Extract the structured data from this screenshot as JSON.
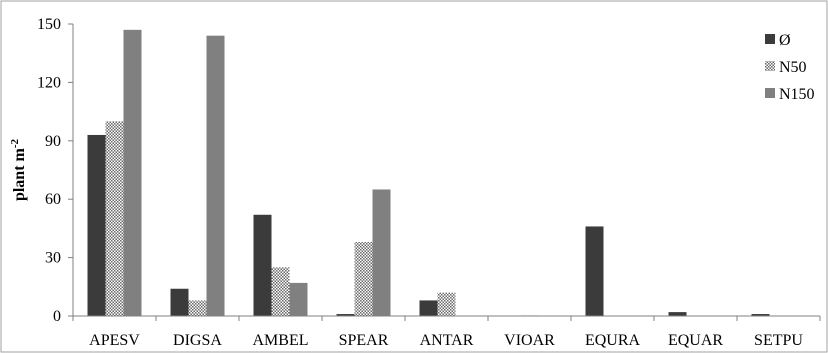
{
  "chart_data": {
    "type": "bar",
    "title": "",
    "xlabel": "",
    "ylabel": {
      "base": "plant m",
      "sup": "-2"
    },
    "ylim": [
      0,
      150
    ],
    "yticks": [
      0,
      30,
      60,
      90,
      120,
      150
    ],
    "grid": false,
    "legend_position": "top-right",
    "categories": [
      "APESV",
      "DIGSA",
      "AMBEL",
      "SPEAR",
      "ANTAR",
      "VIOAR",
      "EQURA",
      "EQUAR",
      "SETPU"
    ],
    "series": [
      {
        "name": "Ø",
        "color": "#3b3b3b",
        "pattern": "solid",
        "values": [
          93,
          14,
          52,
          1,
          8,
          0,
          46,
          2,
          1
        ]
      },
      {
        "name": "N50",
        "color": "#d6d6d6",
        "pattern": "dots",
        "values": [
          100,
          8,
          25,
          38,
          12,
          0.3,
          0,
          0,
          0
        ]
      },
      {
        "name": "N150",
        "color": "#808080",
        "pattern": "solid",
        "values": [
          147,
          144,
          17,
          65,
          0,
          0,
          0,
          0,
          0
        ]
      }
    ]
  }
}
